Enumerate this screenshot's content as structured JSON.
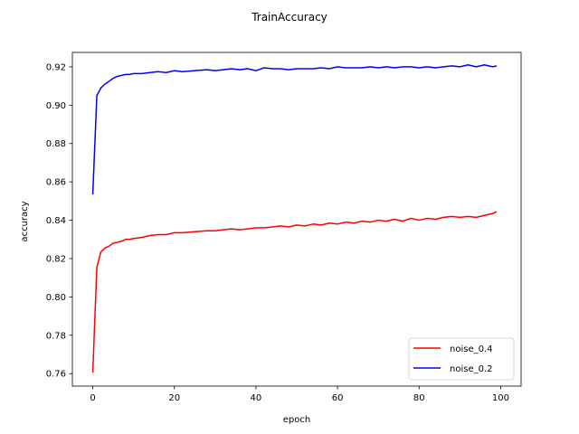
{
  "chart_data": {
    "type": "line",
    "title": "TrainAccuracy",
    "xlabel": "epoch",
    "ylabel": "accuracy",
    "xlim": [
      -5,
      105
    ],
    "ylim": [
      0.7535,
      0.9275
    ],
    "xticks": [
      0,
      20,
      40,
      60,
      80,
      100
    ],
    "yticks": [
      0.76,
      0.78,
      0.8,
      0.82,
      0.84,
      0.86,
      0.88,
      0.9,
      0.92
    ],
    "xtick_labels": [
      "0",
      "20",
      "40",
      "60",
      "80",
      "100"
    ],
    "ytick_labels": [
      "0.76",
      "0.78",
      "0.80",
      "0.82",
      "0.84",
      "0.86",
      "0.88",
      "0.90",
      "0.92"
    ],
    "grid": false,
    "legend_position": "lower-right",
    "series": [
      {
        "name": "noise_0.4",
        "color": "#ff0000",
        "x": [
          0,
          1,
          2,
          3,
          4,
          5,
          6,
          7,
          8,
          9,
          10,
          12,
          14,
          16,
          18,
          20,
          22,
          25,
          28,
          30,
          32,
          34,
          36,
          38,
          40,
          42,
          44,
          46,
          48,
          50,
          52,
          54,
          56,
          58,
          60,
          62,
          64,
          66,
          68,
          70,
          72,
          74,
          76,
          78,
          80,
          82,
          84,
          86,
          88,
          90,
          92,
          94,
          96,
          98,
          99
        ],
        "values": [
          0.7605,
          0.8155,
          0.8235,
          0.8255,
          0.8265,
          0.828,
          0.8285,
          0.829,
          0.83,
          0.83,
          0.8305,
          0.831,
          0.832,
          0.8325,
          0.8325,
          0.8335,
          0.8335,
          0.834,
          0.8345,
          0.8345,
          0.835,
          0.8355,
          0.835,
          0.8355,
          0.836,
          0.836,
          0.8365,
          0.837,
          0.8365,
          0.8375,
          0.837,
          0.838,
          0.8375,
          0.8385,
          0.838,
          0.839,
          0.8385,
          0.8395,
          0.839,
          0.84,
          0.8395,
          0.8405,
          0.8395,
          0.841,
          0.84,
          0.841,
          0.8405,
          0.8415,
          0.842,
          0.8415,
          0.842,
          0.8415,
          0.8425,
          0.8435,
          0.8445
        ]
      },
      {
        "name": "noise_0.2",
        "color": "#0000ff",
        "x": [
          0,
          1,
          2,
          3,
          4,
          5,
          6,
          7,
          8,
          9,
          10,
          12,
          14,
          16,
          18,
          20,
          22,
          25,
          28,
          30,
          32,
          34,
          36,
          38,
          40,
          42,
          44,
          46,
          48,
          50,
          52,
          54,
          56,
          58,
          60,
          62,
          64,
          66,
          68,
          70,
          72,
          74,
          76,
          78,
          80,
          82,
          84,
          86,
          88,
          90,
          92,
          94,
          96,
          98,
          99
        ],
        "values": [
          0.8535,
          0.905,
          0.909,
          0.911,
          0.9125,
          0.914,
          0.915,
          0.9155,
          0.916,
          0.916,
          0.9165,
          0.9165,
          0.917,
          0.9175,
          0.917,
          0.918,
          0.9175,
          0.918,
          0.9185,
          0.918,
          0.9185,
          0.919,
          0.9185,
          0.919,
          0.918,
          0.9195,
          0.919,
          0.919,
          0.9185,
          0.919,
          0.919,
          0.919,
          0.9195,
          0.919,
          0.92,
          0.9195,
          0.9195,
          0.9195,
          0.92,
          0.9195,
          0.92,
          0.9195,
          0.92,
          0.92,
          0.9195,
          0.92,
          0.9195,
          0.92,
          0.9205,
          0.92,
          0.921,
          0.92,
          0.921,
          0.92,
          0.9205
        ]
      }
    ]
  }
}
